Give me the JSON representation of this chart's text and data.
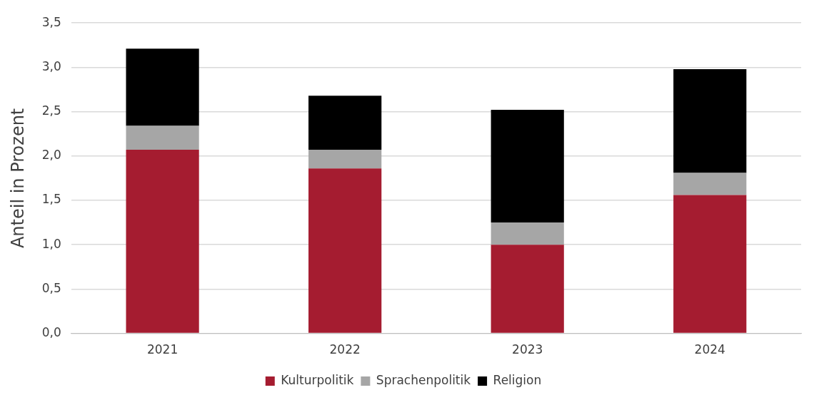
{
  "chart_data": {
    "type": "bar",
    "stacked": true,
    "ylabel": "Anteil in Prozent",
    "categories": [
      "2021",
      "2022",
      "2023",
      "2024"
    ],
    "series": [
      {
        "name": "Kulturpolitik",
        "color": "#a51c30",
        "values": [
          2.07,
          1.86,
          1.0,
          1.56
        ]
      },
      {
        "name": "Sprachenpolitik",
        "color": "#a6a6a6",
        "values": [
          0.27,
          0.21,
          0.25,
          0.25
        ]
      },
      {
        "name": "Religion",
        "color": "#000000",
        "values": [
          0.87,
          0.61,
          1.27,
          1.17
        ]
      }
    ],
    "ylim": [
      0,
      3.5
    ],
    "yticks": [
      {
        "value": 0,
        "label": "0,0"
      },
      {
        "value": 0.5,
        "label": "0,5"
      },
      {
        "value": 1,
        "label": "1,0"
      },
      {
        "value": 1.5,
        "label": "1,5"
      },
      {
        "value": 2,
        "label": "2,0"
      },
      {
        "value": 2.5,
        "label": "2,5"
      },
      {
        "value": 3,
        "label": "3,0"
      },
      {
        "value": 3.5,
        "label": "3,5"
      }
    ],
    "grid": "y",
    "legend": "bottom"
  }
}
